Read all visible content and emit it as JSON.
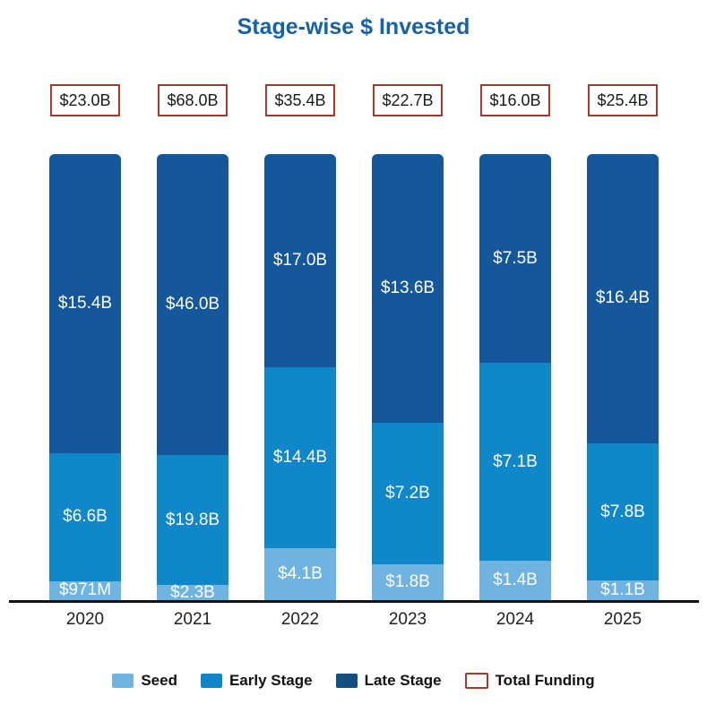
{
  "title": {
    "text": "Stage-wise $ Invested",
    "color": "#1661A8"
  },
  "chart_data": {
    "type": "bar",
    "variant": "stacked-100percent",
    "title": "Stage-wise $ Invested",
    "unit": "USD billions",
    "grid": "off",
    "legend_position": "bottom",
    "categories": [
      "2020",
      "2021",
      "2022",
      "2023",
      "2024",
      "2025"
    ],
    "series": [
      {
        "name": "Seed",
        "color": "#6FB3E0",
        "values": [
          0.971,
          2.3,
          4.1,
          1.8,
          1.4,
          1.1
        ],
        "labels": [
          "$971M",
          "$2.3B",
          "$4.1B",
          "$1.8B",
          "$1.4B",
          "$1.1B"
        ]
      },
      {
        "name": "Early Stage",
        "color": "#0F87C9",
        "values": [
          6.6,
          19.8,
          14.4,
          7.2,
          7.1,
          7.8
        ],
        "labels": [
          "$6.6B",
          "$19.8B",
          "$14.4B",
          "$7.2B",
          "$7.1B",
          "$7.8B"
        ]
      },
      {
        "name": "Late Stage",
        "color": "#15579B",
        "values": [
          15.4,
          46.0,
          17.0,
          13.6,
          7.5,
          16.4
        ],
        "labels": [
          "$15.4B",
          "$46.0B",
          "$17.0B",
          "$13.6B",
          "$7.5B",
          "$16.4B"
        ]
      }
    ],
    "totals": {
      "name": "Total Funding",
      "values": [
        23.0,
        68.0,
        35.4,
        22.7,
        16.0,
        25.4
      ],
      "labels": [
        "$23.0B",
        "$68.0B",
        "$35.4B",
        "$22.7B",
        "$16.0B",
        "$25.4B"
      ],
      "box_border_color": "#A33B2B"
    },
    "value_label_color": "#ffffff",
    "axis_line_color": "#121212"
  },
  "legend": {
    "items": [
      {
        "label": "Seed",
        "swatch_color": "#6FB3E0",
        "style": "fill"
      },
      {
        "label": "Early Stage",
        "swatch_color": "#0F87C9",
        "style": "fill"
      },
      {
        "label": "Late Stage",
        "swatch_color": "#14507F",
        "style": "fill"
      },
      {
        "label": "Total Funding",
        "swatch_color": "#A33B2B",
        "style": "outline"
      }
    ]
  }
}
